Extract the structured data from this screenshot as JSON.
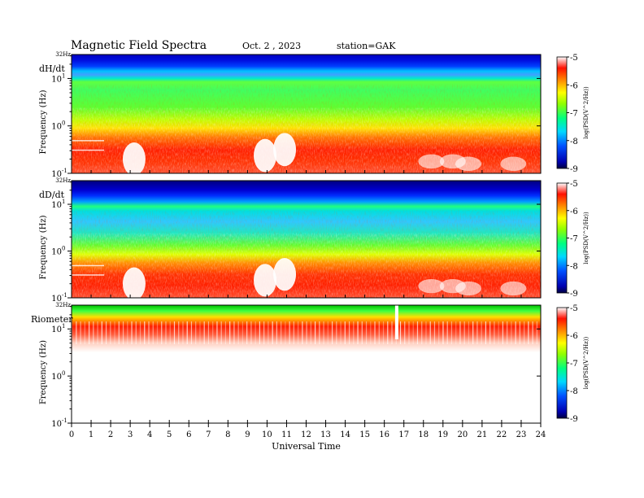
{
  "header": {
    "title": "Magnetic  Field  Spectra",
    "date": "Oct. 2  , 2023",
    "station": "station=GAK"
  },
  "chart_data": [
    {
      "type": "heatmap",
      "panel_label": "dH/dt",
      "ylabel": "Frequency  (Hz)",
      "top_label": "32Hz",
      "yticks": [
        "10",
        "10",
        "10"
      ],
      "ytick_exponents": [
        "1",
        "0",
        "-1"
      ],
      "ylim": [
        0.1,
        32
      ],
      "yscale": "log",
      "colorbar": {
        "ticks": [
          "-5",
          "-6",
          "-7",
          "-8",
          "-9"
        ],
        "label": "log(PSD(V^2/Hz))",
        "range": [
          -9,
          -5
        ]
      }
    },
    {
      "type": "heatmap",
      "panel_label": "dD/dt",
      "ylabel": "Frequency  (Hz)",
      "top_label": "32Hz",
      "yticks": [
        "10",
        "10",
        "10"
      ],
      "ytick_exponents": [
        "1",
        "0",
        "-1"
      ],
      "ylim": [
        0.1,
        32
      ],
      "yscale": "log",
      "colorbar": {
        "ticks": [
          "-5",
          "-6",
          "-7",
          "-8",
          "-9"
        ],
        "label": "log(PSD(V^2/Hz))",
        "range": [
          -9,
          -5
        ]
      }
    },
    {
      "type": "heatmap",
      "panel_label": "Riometer",
      "ylabel": "Frequency  (Hz)",
      "top_label": "32Hz",
      "yticks": [
        "10",
        "10",
        "10"
      ],
      "ytick_exponents": [
        "1",
        "0",
        "-1"
      ],
      "ylim": [
        0.1,
        32
      ],
      "yscale": "log",
      "colorbar": {
        "ticks": [
          "-5",
          "-6",
          "-7",
          "-8",
          "-9"
        ],
        "label": "log(PSD(V^2/Hz))",
        "range": [
          -9,
          -5
        ]
      }
    }
  ],
  "xaxis": {
    "label": "Universal Time",
    "ticks": [
      "0",
      "1",
      "2",
      "3",
      "4",
      "5",
      "6",
      "7",
      "8",
      "9",
      "10",
      "11",
      "12",
      "13",
      "14",
      "15",
      "16",
      "17",
      "18",
      "19",
      "20",
      "21",
      "22",
      "23",
      "24"
    ],
    "xlim": [
      0,
      24
    ]
  }
}
